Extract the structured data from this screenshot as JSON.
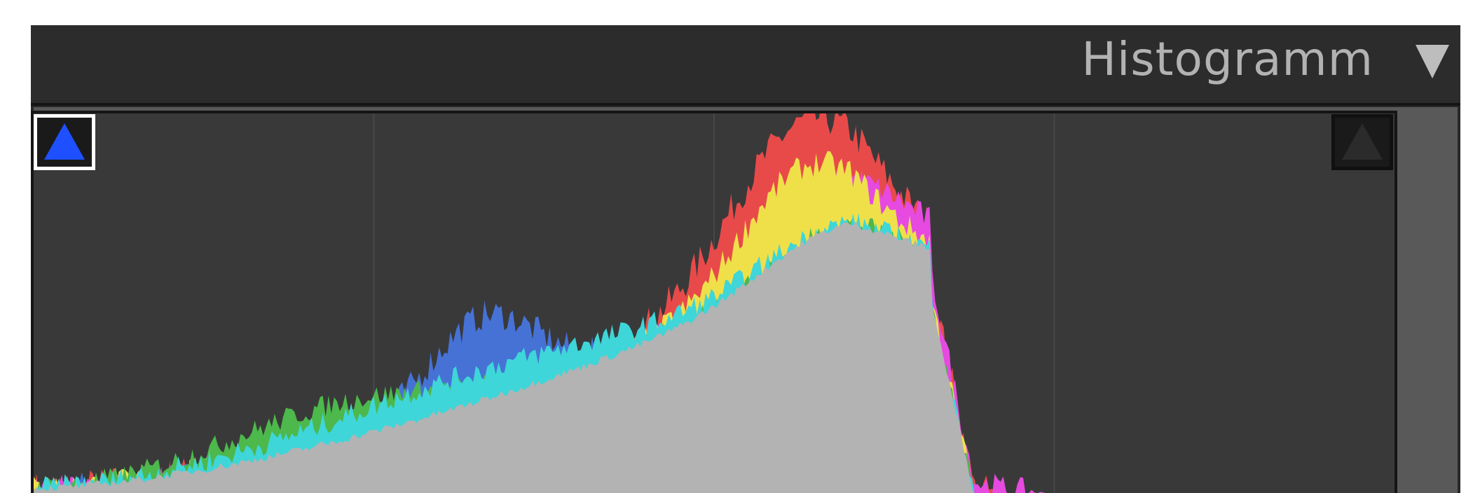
{
  "panel": {
    "title": "Histogramm",
    "collapse_icon": "triangle-down-icon"
  },
  "histogram": {
    "shadow_clipping_indicator": {
      "icon": "triangle-up-icon",
      "active": true,
      "color": "#1e50ff"
    },
    "highlight_clipping_indicator": {
      "icon": "triangle-up-icon",
      "active": false,
      "color": "#2b2b2b"
    },
    "colors": {
      "luminance": "#b3b3b3",
      "red": "#e84a4a",
      "green": "#4db84b",
      "blue": "#4672d6",
      "cyan": "#3ed6d8",
      "magenta": "#e64ae0",
      "yellow": "#efe04a"
    }
  }
}
